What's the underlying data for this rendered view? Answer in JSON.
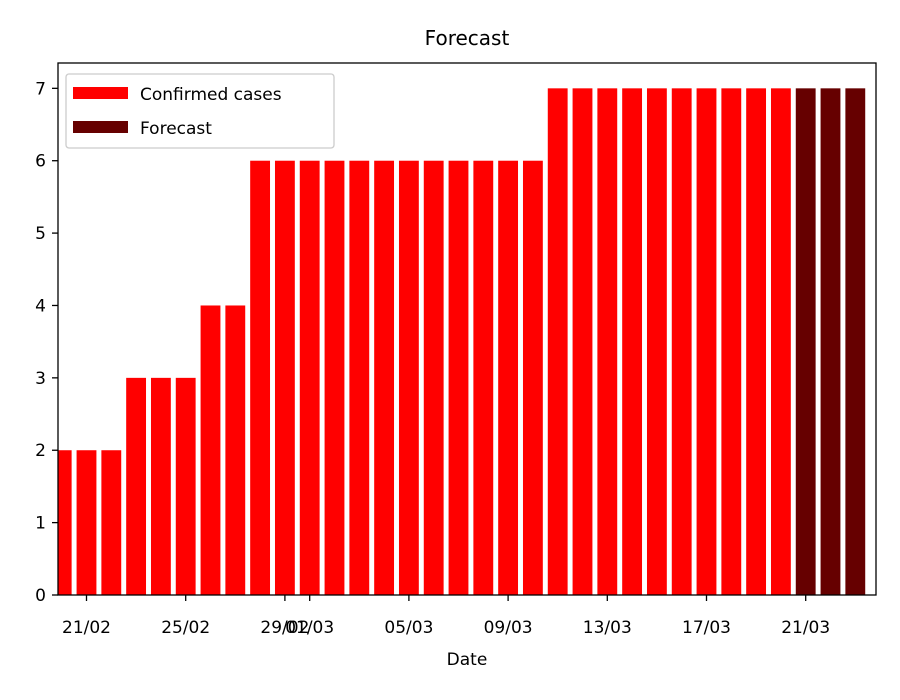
{
  "chart_data": {
    "type": "bar",
    "title": "Forecast",
    "xlabel": "Date",
    "ylabel": "",
    "ylim": [
      0,
      7.35
    ],
    "yticks": [
      0,
      1,
      2,
      3,
      4,
      5,
      6,
      7
    ],
    "series": [
      {
        "name": "Confirmed cases",
        "color": "#ff0000",
        "x": [
          "20/02",
          "21/02",
          "22/02",
          "23/02",
          "24/02",
          "25/02",
          "26/02",
          "27/02",
          "28/02",
          "29/02",
          "01/03",
          "02/03",
          "03/03",
          "04/03",
          "05/03",
          "06/03",
          "07/03",
          "08/03",
          "09/03",
          "10/03",
          "11/03",
          "12/03",
          "13/03",
          "14/03",
          "15/03",
          "16/03",
          "17/03",
          "18/03",
          "19/03",
          "20/03"
        ],
        "values": [
          2,
          2,
          2,
          3,
          3,
          3,
          4,
          4,
          6,
          6,
          6,
          6,
          6,
          6,
          6,
          6,
          6,
          6,
          6,
          6,
          7,
          7,
          7,
          7,
          7,
          7,
          7,
          7,
          7,
          7
        ]
      },
      {
        "name": "Forecast",
        "color": "#660000",
        "x": [
          "21/03",
          "22/03",
          "23/03"
        ],
        "values": [
          7,
          7,
          7
        ]
      }
    ],
    "xticks": [
      "21/02",
      "25/02",
      "29/02",
      "01/03",
      "05/03",
      "09/03",
      "13/03",
      "17/03",
      "21/03"
    ],
    "legend_position": "top-left",
    "grid": false
  }
}
